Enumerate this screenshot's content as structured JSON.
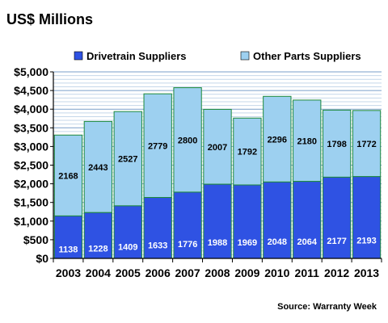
{
  "chart_data": {
    "type": "bar",
    "stacked": true,
    "title": "US$ Millions",
    "categories": [
      "2003",
      "2004",
      "2005",
      "2006",
      "2007",
      "2008",
      "2009",
      "2010",
      "2011",
      "2012",
      "2013"
    ],
    "series": [
      {
        "name": "Drivetrain Suppliers",
        "values": [
          1138,
          1228,
          1409,
          1633,
          1776,
          1988,
          1969,
          2048,
          2064,
          2177,
          2193
        ],
        "color": "#2f52e3"
      },
      {
        "name": "Other Parts Suppliers",
        "values": [
          2168,
          2443,
          2527,
          2779,
          2800,
          2007,
          1792,
          2296,
          2180,
          1798,
          1772
        ],
        "color": "#9dd0f0"
      }
    ],
    "ylim": [
      0,
      5000
    ],
    "y_ticks": [
      "$0",
      "$500",
      "$1,000",
      "$1,500",
      "$2,000",
      "$2,500",
      "$3,000",
      "$3,500",
      "$4,000",
      "$4,500",
      "$5,000"
    ],
    "grid": true,
    "legend": "top",
    "source": "Source: Warranty Week"
  }
}
